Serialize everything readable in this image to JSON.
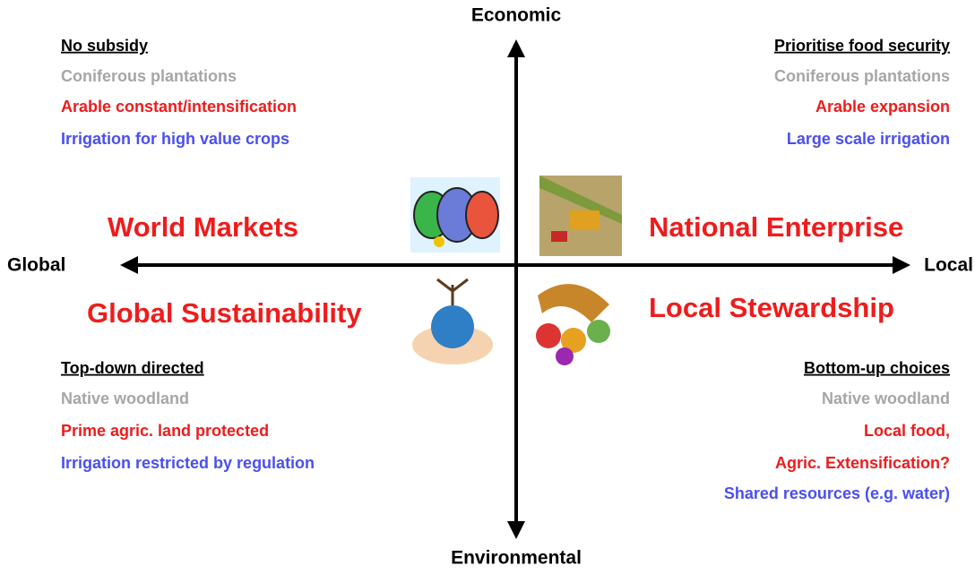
{
  "axes": {
    "top": "Economic",
    "bottom": "Environmental",
    "left": "Global",
    "right": "Local"
  },
  "quadrants": [
    {
      "scenario": "World Markets",
      "heading": "No subsidy",
      "items": [
        "Coniferous plantations",
        "Arable constant/intensification",
        "Irrigation for high value crops"
      ]
    },
    {
      "scenario": "National Enterprise",
      "heading": "Prioritise food security",
      "items": [
        "Coniferous plantations",
        "Arable expansion",
        "Large scale irrigation"
      ]
    },
    {
      "scenario": "Global Sustainability",
      "heading": "Top-down directed",
      "items": [
        "Native woodland",
        "Prime agric. land protected",
        "Irrigation restricted by regulation"
      ]
    },
    {
      "scenario": "Local Stewardship",
      "heading": "Bottom-up choices",
      "items": [
        "Native woodland",
        "Local food,",
        "Agric. Extensification?",
        "Shared resources (e.g. water)"
      ]
    }
  ]
}
